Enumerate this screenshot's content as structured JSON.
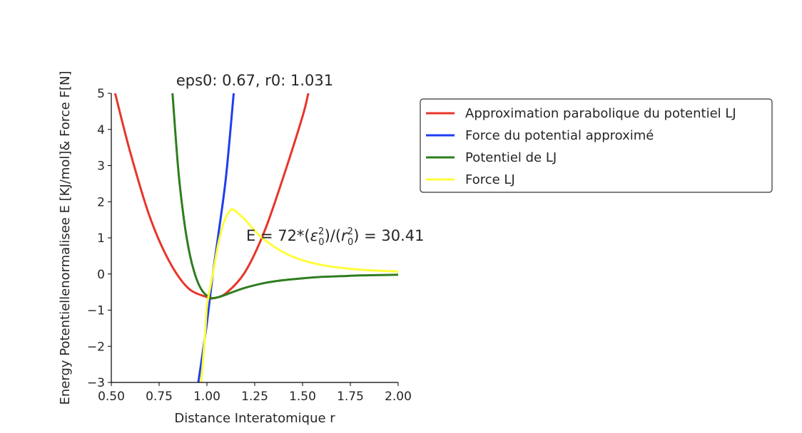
{
  "chart_data": {
    "type": "line",
    "title": "eps0: 0.67, r0: 1.031",
    "xlabel": "Distance Interatomique r",
    "ylabel": "Energy Potentiellenormalisee E [KJ/mol]& Force F[N]",
    "xlim": [
      0.5,
      2.0
    ],
    "ylim": [
      -3,
      5
    ],
    "xticks": [
      0.5,
      0.75,
      1.0,
      1.25,
      1.5,
      1.75,
      2.0
    ],
    "xtick_labels": [
      "0.50",
      "0.75",
      "1.00",
      "1.25",
      "1.50",
      "1.75",
      "2.00"
    ],
    "yticks": [
      -3,
      -2,
      -1,
      0,
      1,
      2,
      3,
      4,
      5
    ],
    "ytick_labels": [
      "−3",
      "−2",
      "−1",
      "0",
      "1",
      "2",
      "3",
      "4",
      "5"
    ],
    "grid": false,
    "legend_position": "outside-right",
    "annotation": {
      "x": 1.22,
      "y": 1.0,
      "prefix": "E = 72*(",
      "eps": "ε",
      "slash": ")/(",
      "r": "r",
      "sub": "0",
      "sup": "2",
      "suffix": ") = 30.41"
    },
    "series": [
      {
        "name": "Approximation parabolique du potentiel LJ",
        "color": "#e8352b",
        "x": [
          0.52,
          0.6,
          0.7,
          0.8,
          0.9,
          1.0,
          1.031,
          1.1,
          1.2,
          1.3,
          1.4,
          1.5,
          1.53
        ],
        "y": [
          5.0,
          3.35,
          1.6,
          0.38,
          -0.38,
          -0.64,
          -0.67,
          -0.53,
          0.06,
          1.17,
          2.69,
          4.36,
          5.0
        ]
      },
      {
        "name": "Force du potential approximé",
        "color": "#1f3df0",
        "x": [
          0.955,
          0.98,
          1.0,
          1.031,
          1.06,
          1.1,
          1.14
        ],
        "y": [
          -3.0,
          -2.1,
          -1.35,
          0.0,
          1.1,
          2.7,
          5.0
        ]
      },
      {
        "name": "Potentiel de LJ",
        "color": "#2e7d1f",
        "x": [
          0.82,
          0.85,
          0.88,
          0.91,
          0.94,
          0.97,
          1.0,
          1.031,
          1.06,
          1.1,
          1.15,
          1.2,
          1.3,
          1.4,
          1.5,
          1.6,
          1.7,
          1.8,
          1.9,
          2.0
        ],
        "y": [
          5.0,
          2.9,
          1.5,
          0.55,
          -0.05,
          -0.42,
          -0.6,
          -0.67,
          -0.64,
          -0.57,
          -0.47,
          -0.38,
          -0.25,
          -0.17,
          -0.12,
          -0.08,
          -0.06,
          -0.04,
          -0.03,
          -0.02
        ]
      },
      {
        "name": "Force LJ",
        "color": "#ffff3a",
        "x": [
          0.97,
          0.99,
          1.0,
          1.02,
          1.031,
          1.06,
          1.09,
          1.12,
          1.14,
          1.17,
          1.2,
          1.25,
          1.3,
          1.4,
          1.5,
          1.6,
          1.7,
          1.8,
          1.9,
          2.0
        ],
        "y": [
          -3.0,
          -1.7,
          -0.9,
          -0.3,
          0.0,
          0.85,
          1.45,
          1.75,
          1.78,
          1.65,
          1.5,
          1.2,
          0.95,
          0.6,
          0.38,
          0.25,
          0.17,
          0.12,
          0.09,
          0.07
        ]
      }
    ]
  }
}
